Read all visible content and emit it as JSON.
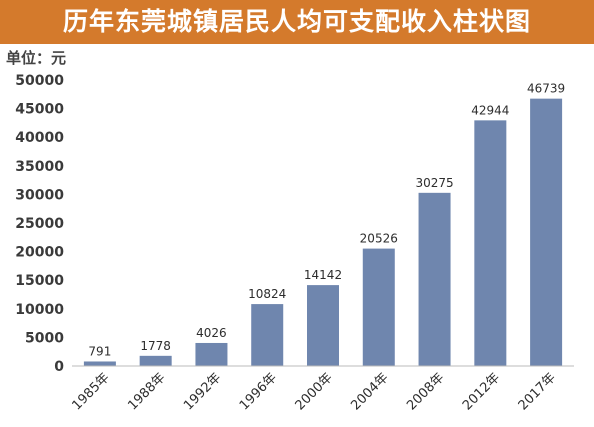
{
  "chart_data": {
    "type": "bar",
    "title": "历年东莞城镇居民人均可支配收入柱状图",
    "unit_label": "单位：元",
    "categories": [
      "1985年",
      "1988年",
      "1992年",
      "1996年",
      "2000年",
      "2004年",
      "2008年",
      "2012年",
      "2017年"
    ],
    "values": [
      791,
      1778,
      4026,
      10824,
      14142,
      20526,
      30275,
      42944,
      46739
    ],
    "ylim": [
      0,
      50000
    ],
    "yticks": [
      0,
      5000,
      10000,
      15000,
      20000,
      25000,
      30000,
      35000,
      40000,
      45000,
      50000
    ],
    "xlabel": "",
    "ylabel": "",
    "grid": false,
    "legend": false,
    "colors": {
      "bar": "#6f86ae",
      "title_bg": "#d47a2c"
    }
  }
}
